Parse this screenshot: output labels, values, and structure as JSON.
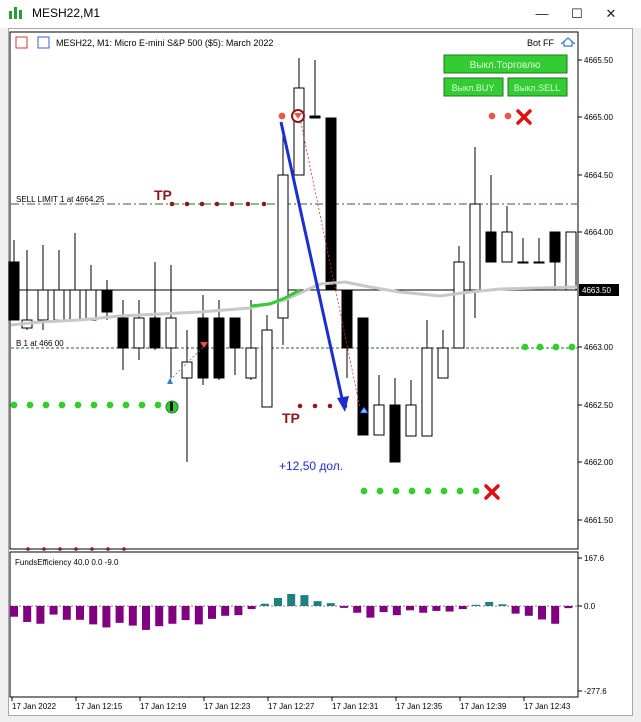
{
  "window": {
    "title": "MESH22,M1",
    "controls": [
      "—",
      "☐",
      "✕"
    ]
  },
  "chart_header": {
    "info": "MESH22, M1:  Micro E-mini S&P 500 ($5): March 2022",
    "expert": "Bot FF"
  },
  "buttons": {
    "trade_off": "Выкл.Торговлю",
    "buy_off": "Выкл.BUY",
    "sell_off": "Выкл.SELL"
  },
  "price_axis": {
    "labels": [
      "4665.50",
      "4665.00",
      "4664.50",
      "4664.00",
      "4663.50",
      "4663.00",
      "4662.50",
      "4662.00",
      "4661.50"
    ],
    "current_price": "4663.50"
  },
  "annotations": {
    "sell_limit": "SELL LIMIT 1 at 4664.25",
    "buy_limit": "B   1 at 466 00",
    "tp_label": "TP",
    "profit": "+12,50 дол."
  },
  "indicator": {
    "name": "FundsEfficiency 40.0 0.0 -9.0",
    "scale_labels": [
      "167.6",
      "0.0",
      "-277.6"
    ],
    "bars": [
      -35,
      -52,
      -58,
      -28,
      -45,
      -45,
      -60,
      -70,
      -55,
      -64,
      -78,
      -66,
      -58,
      -46,
      -60,
      -42,
      -32,
      -30,
      -10,
      8,
      28,
      42,
      38,
      17,
      10,
      -6,
      -22,
      -38,
      -20,
      -30,
      -14,
      -22,
      -16,
      -18,
      -10,
      4,
      14,
      6,
      -25,
      -32,
      -44,
      -58,
      -7
    ],
    "pos_color": "#208080",
    "neg_color": "#800080"
  },
  "time_axis": {
    "labels": [
      "17 Jan 2022",
      "17 Jan 12:15",
      "17 Jan 12:19",
      "17 Jan 12:23",
      "17 Jan 12:27",
      "17 Jan 12:31",
      "17 Jan 12:35",
      "17 Jan 12:39",
      "17 Jan 12:43"
    ]
  },
  "colors": {
    "button_bg": "#33cc33",
    "buy_dots": "#33cc33",
    "sell_dots": "#e8584a",
    "tp_color": "#8b1a1a",
    "trend_arrow": "#1a2fd1",
    "cross": "#e01010",
    "moving_average": "#c8c8c8"
  }
}
